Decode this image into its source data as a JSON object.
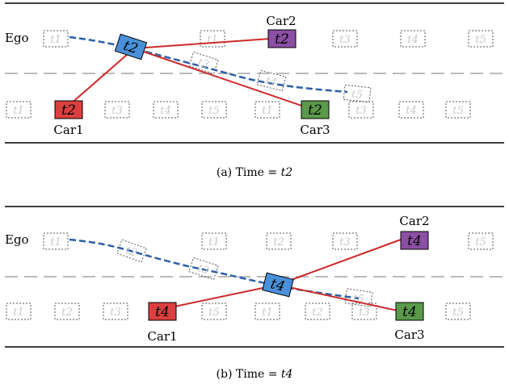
{
  "panels": [
    {
      "caption": "(a) Time = t2",
      "caption_prefix": "(a)  Time = ",
      "caption_var": "t2",
      "ego_label": "Ego",
      "cars": [
        {
          "name": "Car1",
          "label": "t2",
          "color": "#d9403f"
        },
        {
          "name": "Car2",
          "label": "t2",
          "color": "#8b4fa3"
        },
        {
          "name": "Car3",
          "label": "t2",
          "color": "#5a9a4a"
        }
      ],
      "ego_label_box": "t2",
      "ghost_top": [
        "t1",
        "t1",
        "t3",
        "t4",
        "t5"
      ],
      "ghost_bottom": [
        "t1",
        "t3",
        "t4",
        "t5",
        "t1",
        "t3",
        "t4",
        "t5"
      ],
      "ghost_path": [
        "t3",
        "t4",
        "t5"
      ]
    },
    {
      "caption": "(b) Time = t4",
      "caption_prefix": "(b)  Time = ",
      "caption_var": "t4",
      "ego_label": "Ego",
      "cars": [
        {
          "name": "Car1",
          "label": "t4",
          "color": "#d9403f"
        },
        {
          "name": "Car2",
          "label": "t4",
          "color": "#8b4fa3"
        },
        {
          "name": "Car3",
          "label": "t4",
          "color": "#5a9a4a"
        }
      ],
      "ego_label_box": "t4",
      "ghost_top": [
        "t1",
        "t1",
        "t2",
        "t3",
        "t5"
      ],
      "ghost_bottom": [
        "t1",
        "t2",
        "t3",
        "t5",
        "t1",
        "t2",
        "t3",
        "t5"
      ],
      "ghost_path": [
        "t2",
        "t3",
        "t5"
      ]
    }
  ],
  "colors": {
    "ego_fill": "#4a90d9",
    "path": "#2b5fa8",
    "link": "#cc2a2a",
    "lane_divider": "#bbbbbb"
  }
}
